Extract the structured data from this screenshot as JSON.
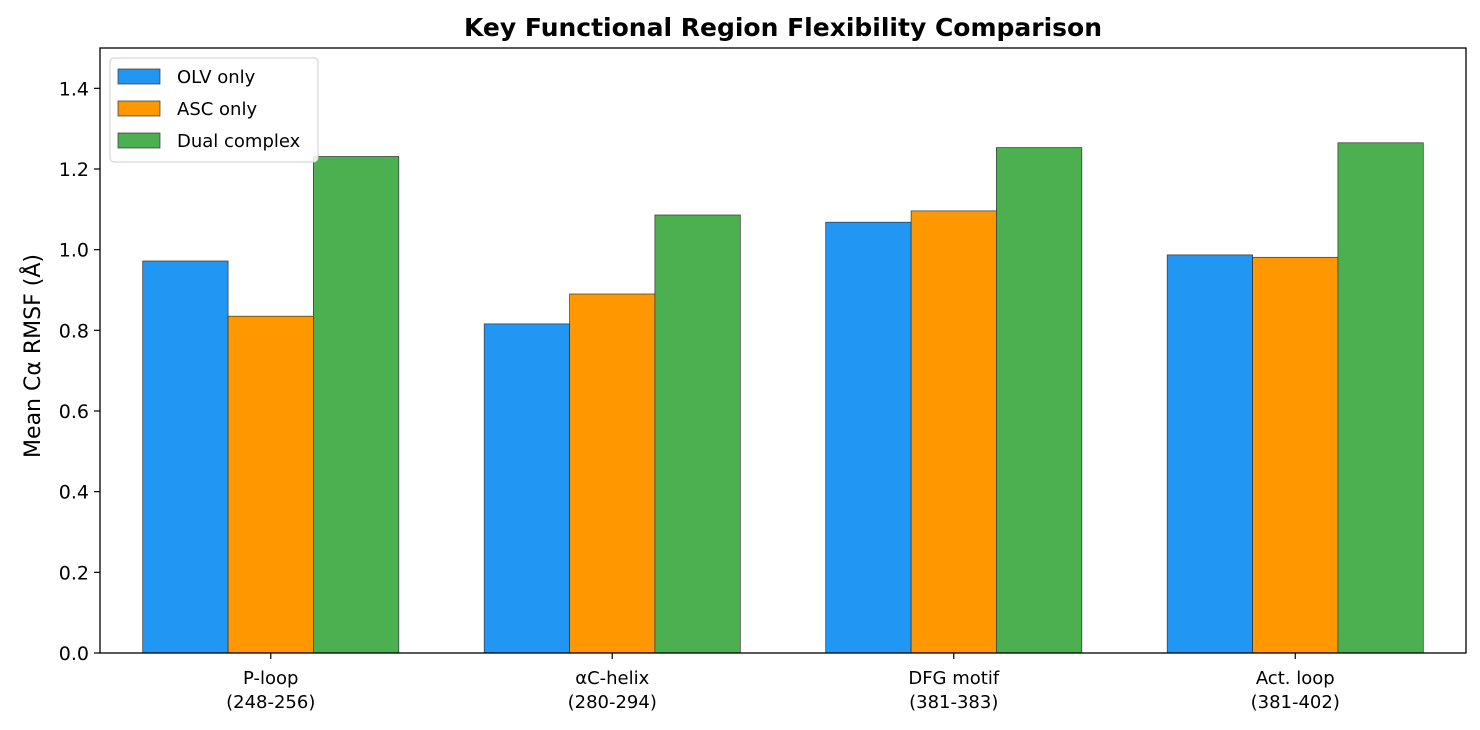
{
  "chart_data": {
    "type": "bar",
    "title": "Key Functional Region Flexibility Comparison",
    "xlabel": "",
    "ylabel": "Mean Cα RMSF (Å)",
    "ylim": [
      0,
      1.5
    ],
    "yticks": [
      "0.0",
      "0.2",
      "0.4",
      "0.6",
      "0.8",
      "1.0",
      "1.2",
      "1.4"
    ],
    "categories": [
      [
        "P-loop",
        "(248-256)"
      ],
      [
        "αC-helix",
        "(280-294)"
      ],
      [
        "DFG motif",
        "(381-383)"
      ],
      [
        "Act. loop",
        "(381-402)"
      ]
    ],
    "series": [
      {
        "name": "OLV only",
        "color": "#2196F3",
        "values": [
          0.972,
          0.816,
          1.068,
          0.987
        ]
      },
      {
        "name": "ASC only",
        "color": "#FF9800",
        "values": [
          0.835,
          0.89,
          1.096,
          0.981
        ]
      },
      {
        "name": "Dual complex",
        "color": "#4CAF50",
        "values": [
          1.231,
          1.086,
          1.253,
          1.265
        ]
      }
    ],
    "grid": false,
    "legend_position": "top-left"
  }
}
